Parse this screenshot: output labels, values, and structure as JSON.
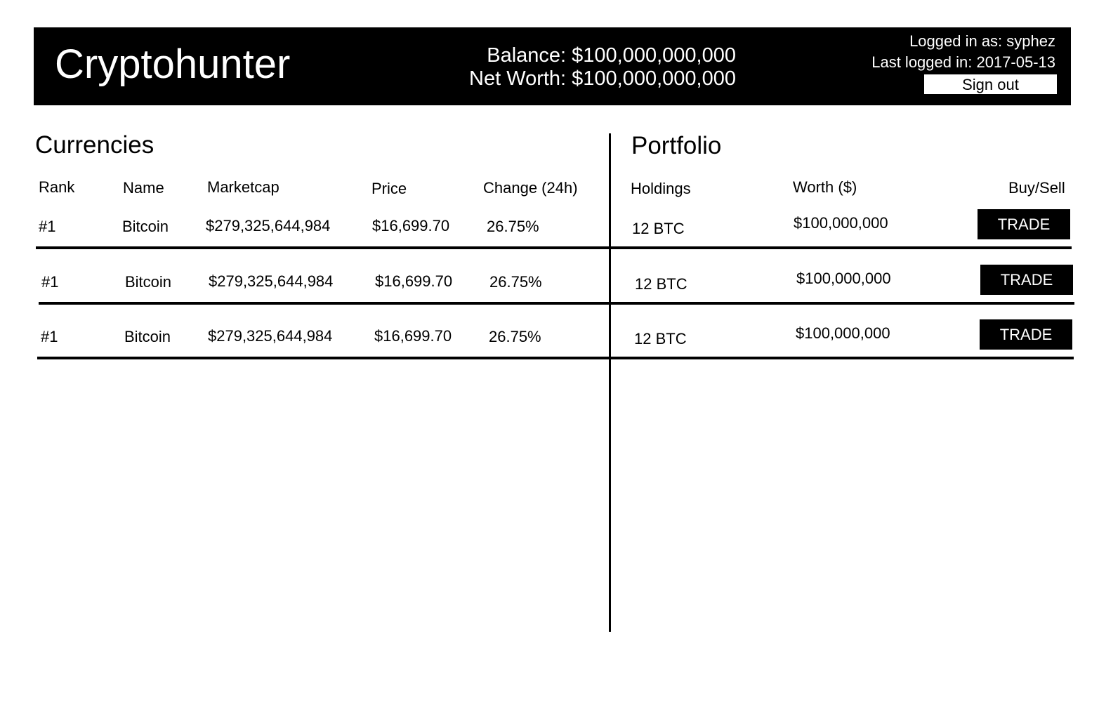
{
  "header": {
    "title": "Cryptohunter",
    "balance": "Balance: $100,000,000,000",
    "net_worth": "Net Worth: $100,000,000,000",
    "logged_in_as": "Logged in as: syphez",
    "last_logged_in": "Last logged in: 2017-05-13",
    "sign_out_label": "Sign out"
  },
  "currencies": {
    "title": "Currencies",
    "columns": [
      "Rank",
      "Name",
      "Marketcap",
      "Price",
      "Change (24h)"
    ],
    "rows": [
      {
        "rank": "#1",
        "name": "Bitcoin",
        "marketcap": "$279,325,644,984",
        "price": "$16,699.70",
        "change": "26.75%"
      },
      {
        "rank": "#1",
        "name": "Bitcoin",
        "marketcap": "$279,325,644,984",
        "price": "$16,699.70",
        "change": "26.75%"
      },
      {
        "rank": "#1",
        "name": "Bitcoin",
        "marketcap": "$279,325,644,984",
        "price": "$16,699.70",
        "change": "26.75%"
      }
    ]
  },
  "portfolio": {
    "title": "Portfolio",
    "columns": [
      "Holdings",
      "Worth ($)",
      "Buy/Sell"
    ],
    "rows": [
      {
        "holdings": "12 BTC",
        "worth": "$100,000,000",
        "action": "TRADE"
      },
      {
        "holdings": "12 BTC",
        "worth": "$100,000,000",
        "action": "TRADE"
      },
      {
        "holdings": "12 BTC",
        "worth": "$100,000,000",
        "action": "TRADE"
      }
    ]
  }
}
